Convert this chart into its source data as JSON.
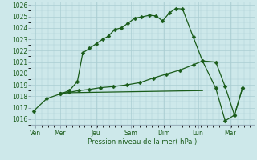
{
  "xlabel": "Pression niveau de la mer( hPa )",
  "xtick_labels": [
    "Ven",
    "Mer",
    "Jeu",
    "Sam",
    "Dim",
    "Lun",
    "Mar"
  ],
  "ylim": [
    1015.5,
    1026.3
  ],
  "ytick_vals": [
    1016,
    1017,
    1018,
    1019,
    1020,
    1021,
    1022,
    1023,
    1024,
    1025,
    1026
  ],
  "bg_color": "#cde8ea",
  "grid_color": "#aacdd2",
  "line_color": "#1a5c1a",
  "line1_x": [
    0.0,
    0.5,
    1.0,
    1.35,
    1.65,
    1.85,
    2.1,
    2.35,
    2.6,
    2.8,
    3.05,
    3.3,
    3.55,
    3.8,
    4.05,
    4.35,
    4.6,
    4.85,
    5.1,
    5.35,
    5.6,
    6.0,
    6.35,
    6.85,
    7.2,
    7.55,
    7.85
  ],
  "line1_y": [
    1016.7,
    1017.8,
    1018.2,
    1018.5,
    1019.3,
    1021.8,
    1022.2,
    1022.6,
    1023.0,
    1023.25,
    1023.85,
    1024.0,
    1024.4,
    1024.85,
    1024.95,
    1025.1,
    1025.05,
    1024.6,
    1025.3,
    1025.7,
    1025.65,
    1023.2,
    1021.1,
    1018.7,
    1015.85,
    1016.35,
    1018.7
  ],
  "line2_x": [
    1.0,
    1.35,
    1.7,
    2.1,
    2.5,
    3.0,
    3.5,
    4.0,
    4.5,
    5.0,
    5.5,
    6.0,
    6.35,
    6.85,
    7.2,
    7.55,
    7.85
  ],
  "line2_y": [
    1018.2,
    1018.35,
    1018.5,
    1018.6,
    1018.75,
    1018.85,
    1019.0,
    1019.2,
    1019.6,
    1019.95,
    1020.3,
    1020.75,
    1021.1,
    1021.0,
    1018.85,
    1016.35,
    1018.7
  ],
  "line3_x": [
    1.0,
    6.35
  ],
  "line3_y": [
    1018.3,
    1018.5
  ],
  "x_day_positions": [
    0.08,
    1.0,
    2.35,
    3.65,
    4.9,
    6.18,
    7.4
  ],
  "xlim": [
    -0.1,
    8.3
  ],
  "marker_size": 2.5
}
